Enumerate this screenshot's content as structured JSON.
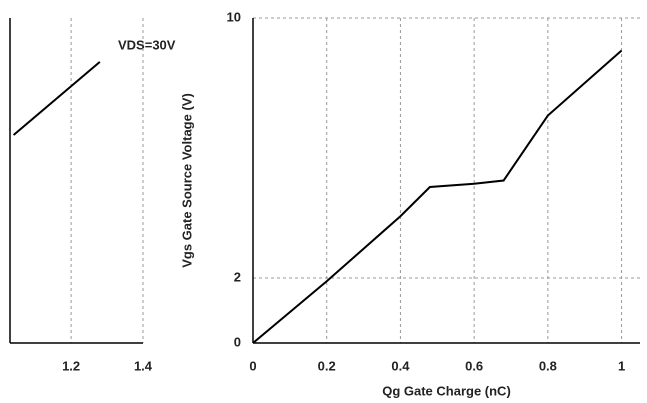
{
  "chart_data": [
    {
      "type": "line",
      "x_label": "Qg Gate Charge (nC)",
      "y_label": "Vgs Gate Source Voltage (V)",
      "annotation": "VDS=30V",
      "x": [
        0,
        0.2,
        0.4,
        0.48,
        0.6,
        0.68,
        0.8,
        1.0
      ],
      "series": [
        {
          "name": "Vgs",
          "color": "#000000",
          "values": [
            0,
            1.9,
            3.9,
            4.8,
            4.9,
            5.0,
            7.0,
            9.0
          ]
        }
      ],
      "xlim": [
        0,
        1.05
      ],
      "xticks": [
        0,
        0.2,
        0.4,
        0.6,
        0.8,
        1
      ],
      "ylim": [
        0,
        10
      ],
      "yticks": [
        0,
        2,
        10
      ],
      "grid": true
    },
    {
      "type": "line",
      "x": [
        1.04,
        1.28
      ],
      "series": [
        {
          "name": "Vgs",
          "color": "#000000",
          "values": [
            6.4,
            8.65
          ]
        }
      ],
      "xlim": [
        1.03,
        1.4
      ],
      "xticks": [
        1.2,
        1.4
      ],
      "ylim": [
        0,
        10
      ],
      "grid": true
    }
  ]
}
